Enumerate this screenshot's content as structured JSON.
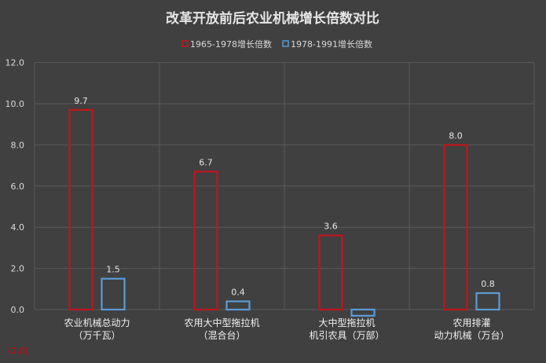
{
  "chart_data": {
    "type": "bar",
    "title": "改革开放前后农业机械增长倍数对比",
    "categories": [
      [
        "农业机械总动力",
        "（万千瓦）"
      ],
      [
        "农用大中型拖拉机",
        "（混合台）"
      ],
      [
        "大中型拖拉机",
        "机引农具（万部）"
      ],
      [
        "农用排灌",
        "动力机械（万台）"
      ]
    ],
    "series": [
      {
        "name": "1965-1978增长倍数",
        "values": [
          9.7,
          6.7,
          3.6,
          8.0
        ],
        "color": "#c0161d"
      },
      {
        "name": "1978-1991增长倍数",
        "values": [
          1.5,
          0.4,
          -0.3,
          0.8
        ],
        "color": "#5b9bd5"
      }
    ],
    "data_labels": [
      [
        "9.7",
        "6.7",
        "3.6",
        "8.0"
      ],
      [
        "1.5",
        "0.4",
        "",
        "0.8"
      ]
    ],
    "y_ticks": [
      "12.0",
      "10.0",
      "8.0",
      "6.0",
      "4.0",
      "2.0",
      "0.0"
    ],
    "y_tick_values": [
      12,
      10,
      8,
      6,
      4,
      2,
      0
    ],
    "y_negative_tick": "(2.0)",
    "ylim": [
      -2,
      12
    ],
    "grid": true,
    "legend_position": "top-center",
    "background_color": "#404040",
    "negative_tick_color": "#e00000"
  }
}
